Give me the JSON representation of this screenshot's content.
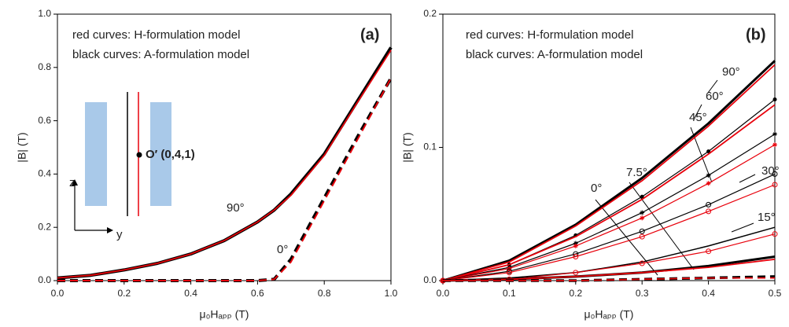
{
  "chart_data": [
    {
      "type": "line",
      "panel_label": "(a)",
      "xlabel": "μ₀Hₐₚₚ (T)",
      "ylabel": "|B| (T)",
      "xlim": [
        0,
        1
      ],
      "ylim": [
        0,
        1
      ],
      "xticks": [
        {
          "value": 0,
          "label": "0.0"
        },
        0.2,
        0.4,
        0.6,
        0.8,
        {
          "value": 1,
          "label": "1.0"
        }
      ],
      "yticks": [
        {
          "value": 0,
          "label": "0.0"
        },
        0.2,
        0.4,
        0.6,
        0.8,
        {
          "value": 1,
          "label": "1.0"
        }
      ],
      "legend": [
        {
          "text": "red curves: H-formulation model",
          "color": "#e8000b"
        },
        {
          "text": "black curves: A-formulation model",
          "color": "#000000"
        }
      ],
      "annotations": [
        "90°",
        "0°",
        "O′ (0,4,1)",
        "z",
        "y"
      ],
      "x": [
        0,
        0.1,
        0.2,
        0.3,
        0.4,
        0.5,
        0.6,
        0.65,
        0.7,
        0.8,
        0.9,
        1.0
      ],
      "series": [
        {
          "color": "#000000",
          "dashed": false,
          "width": 4,
          "values": [
            0.01,
            0.02,
            0.04,
            0.065,
            0.1,
            0.15,
            0.22,
            0.265,
            0.325,
            0.475,
            0.675,
            0.875
          ]
        },
        {
          "color": "#e8000b",
          "dashed": false,
          "width": 1.8,
          "values": [
            0.01,
            0.02,
            0.04,
            0.065,
            0.1,
            0.15,
            0.22,
            0.265,
            0.32,
            0.47,
            0.67,
            0.865
          ]
        },
        {
          "color": "#000000",
          "dashed": true,
          "width": 4,
          "values": [
            0,
            0,
            0,
            0,
            0,
            0,
            0,
            0.005,
            0.08,
            0.31,
            0.54,
            0.76
          ]
        },
        {
          "color": "#e8000b",
          "dashed": true,
          "width": 2,
          "values": [
            0,
            0,
            0,
            0,
            0,
            0,
            0,
            0.005,
            0.07,
            0.3,
            0.53,
            0.76
          ]
        }
      ]
    },
    {
      "type": "line",
      "panel_label": "(b)",
      "xlabel": "μ₀Hₐₚₚ (T)",
      "ylabel": "|B| (T)",
      "xlim": [
        0,
        0.5
      ],
      "ylim": [
        0,
        0.2
      ],
      "xticks": [
        {
          "value": 0,
          "label": "0.0"
        },
        0.1,
        0.2,
        0.3,
        0.4,
        0.5
      ],
      "yticks": [
        {
          "value": 0,
          "label": "0.0"
        },
        0.1,
        0.2
      ],
      "legend": [
        {
          "text": "red curves: H-formulation model",
          "color": "#e8000b"
        },
        {
          "text": "black curves: A-formulation model",
          "color": "#000000"
        }
      ],
      "annotations": [
        "90°",
        "60°",
        "45°",
        "30°",
        "15°",
        "7.5°",
        "0°"
      ],
      "x": [
        0,
        0.1,
        0.2,
        0.3,
        0.4,
        0.5
      ],
      "series": [
        {
          "color": "#000000",
          "dashed": false,
          "width": 3,
          "values": [
            0,
            0.015,
            0.042,
            0.077,
            0.118,
            0.165
          ]
        },
        {
          "color": "#e8000b",
          "dashed": false,
          "width": 1.8,
          "values": [
            0,
            0.014,
            0.041,
            0.075,
            0.116,
            0.162
          ]
        },
        {
          "color": "#000000",
          "dashed": false,
          "width": 1.2,
          "marker": "dot",
          "values": [
            0,
            0.012,
            0.034,
            0.063,
            0.097,
            0.136
          ]
        },
        {
          "color": "#e8000b",
          "dashed": false,
          "width": 1.8,
          "values": [
            0,
            0.012,
            0.033,
            0.061,
            0.095,
            0.132
          ]
        },
        {
          "color": "#000000",
          "dashed": false,
          "width": 1.2,
          "marker": "star",
          "values": [
            0,
            0.01,
            0.028,
            0.051,
            0.079,
            0.11
          ]
        },
        {
          "color": "#e8000b",
          "dashed": false,
          "width": 1.2,
          "marker": "star",
          "values": [
            0,
            0.009,
            0.026,
            0.047,
            0.073,
            0.102
          ]
        },
        {
          "color": "#000000",
          "dashed": false,
          "width": 1.2,
          "marker": "circle",
          "values": [
            0,
            0.007,
            0.02,
            0.037,
            0.057,
            0.08
          ]
        },
        {
          "color": "#e8000b",
          "dashed": false,
          "width": 1.2,
          "marker": "circle",
          "values": [
            0,
            0.006,
            0.018,
            0.033,
            0.052,
            0.072
          ]
        },
        {
          "color": "#000000",
          "dashed": false,
          "width": 1.5,
          "values": [
            0,
            0.002,
            0.006,
            0.014,
            0.026,
            0.04
          ]
        },
        {
          "color": "#e8000b",
          "dashed": false,
          "width": 1.2,
          "marker": "circle",
          "values": [
            0,
            0.001,
            0.006,
            0.013,
            0.022,
            0.035
          ]
        },
        {
          "color": "#000000",
          "dashed": false,
          "width": 3,
          "values": [
            0,
            0.001,
            0.003,
            0.006,
            0.011,
            0.018
          ]
        },
        {
          "color": "#e8000b",
          "dashed": false,
          "width": 1.8,
          "values": [
            0,
            0.001,
            0.003,
            0.006,
            0.01,
            0.016
          ]
        },
        {
          "color": "#000000",
          "dashed": true,
          "width": 3.5,
          "values": [
            0,
            0,
            0,
            0.001,
            0.002,
            0.003
          ]
        },
        {
          "color": "#e8000b",
          "dashed": true,
          "width": 1.8,
          "values": [
            0,
            0,
            0,
            0.001,
            0.002,
            0.002
          ]
        }
      ]
    }
  ]
}
